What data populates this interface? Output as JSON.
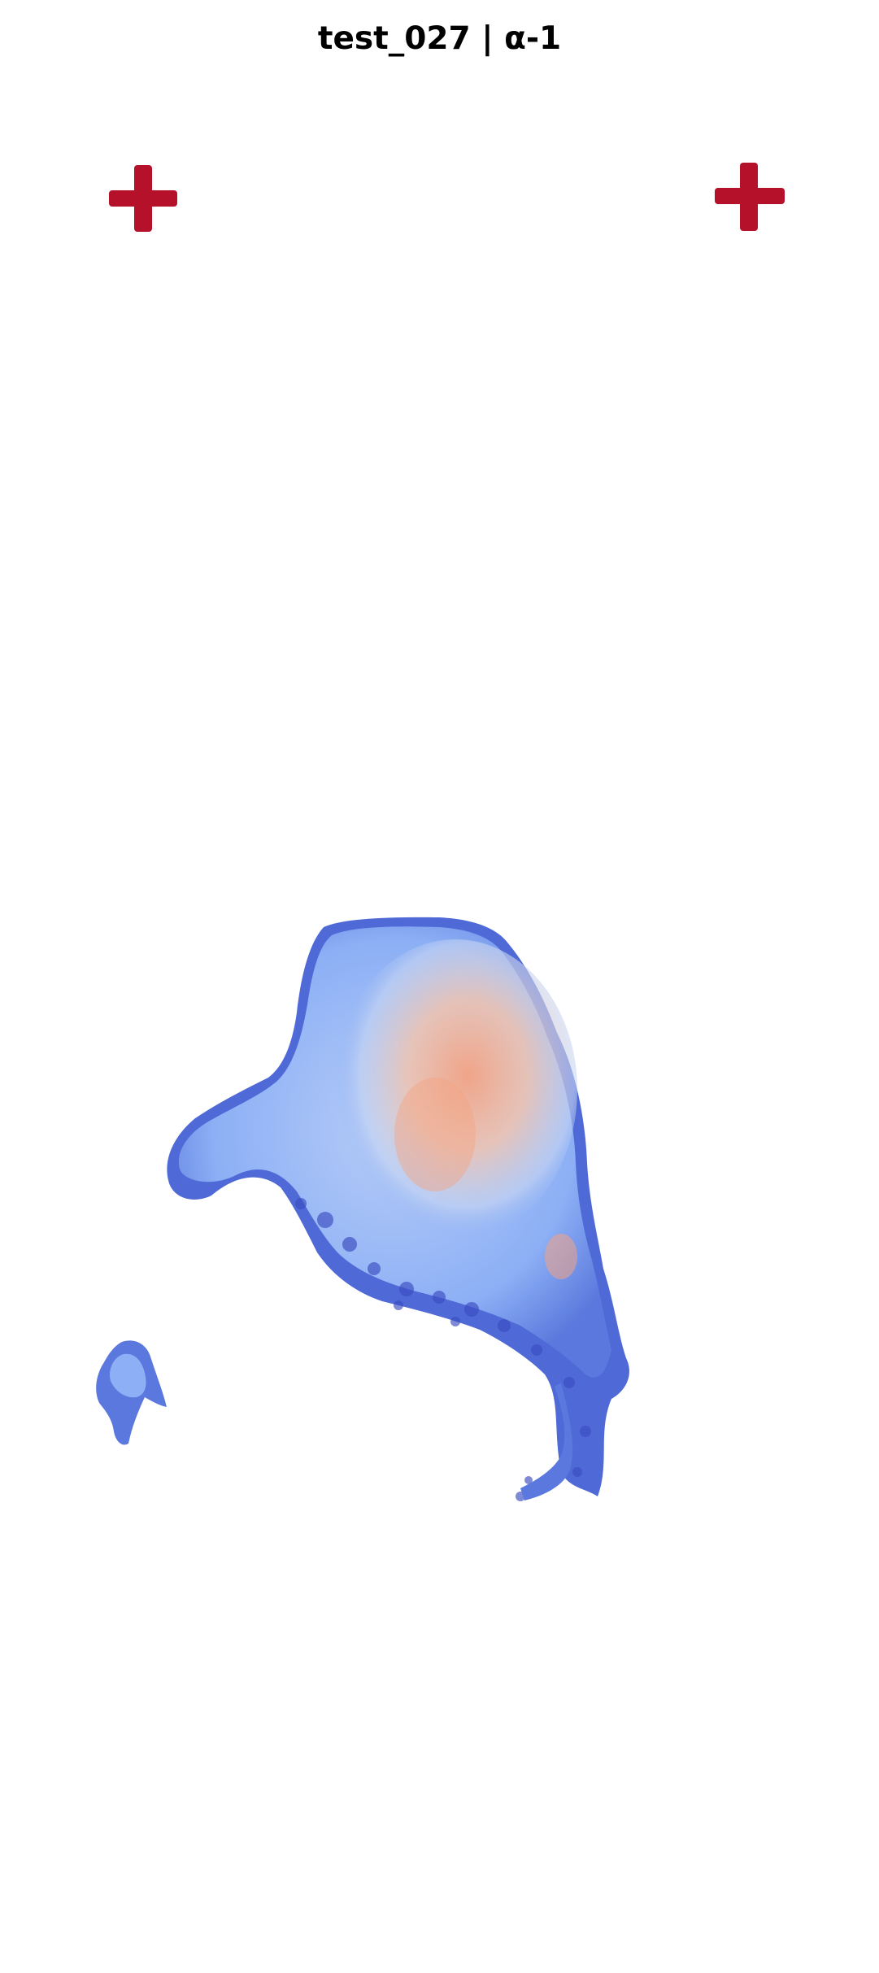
{
  "figure": {
    "title": "test_027 | α-1"
  },
  "colormap": {
    "name": "coolwarm",
    "low": "#3b4cc0",
    "mid_low": "#8caff5",
    "mid": "#dddcdc",
    "mid_high": "#f4a383",
    "high": "#b40426"
  },
  "markers": [
    {
      "name": "fiducial-cross-left",
      "color": "#b5112a"
    },
    {
      "name": "fiducial-cross-right",
      "color": "#b5112a"
    }
  ],
  "regions": [
    {
      "name": "main-tissue-region",
      "dominant_colors": [
        "#3b4cc0",
        "#8caff5",
        "#f4a383"
      ]
    },
    {
      "name": "small-tissue-fragment",
      "dominant_colors": [
        "#3b4cc0",
        "#8caff5"
      ]
    }
  ]
}
